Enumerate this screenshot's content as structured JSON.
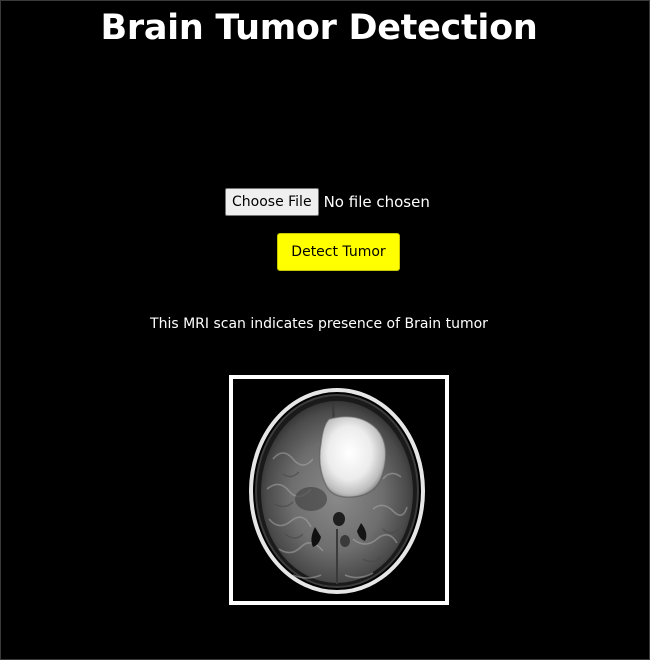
{
  "header": {
    "title": "Brain Tumor Detection"
  },
  "upload": {
    "choose_label": "Choose File",
    "status": "No file chosen"
  },
  "actions": {
    "detect_label": "Detect Tumor"
  },
  "result": {
    "message": "This MRI scan indicates presence of Brain tumor"
  },
  "colors": {
    "background": "#000000",
    "text": "#ffffff",
    "detect_button": "#ffff00"
  }
}
